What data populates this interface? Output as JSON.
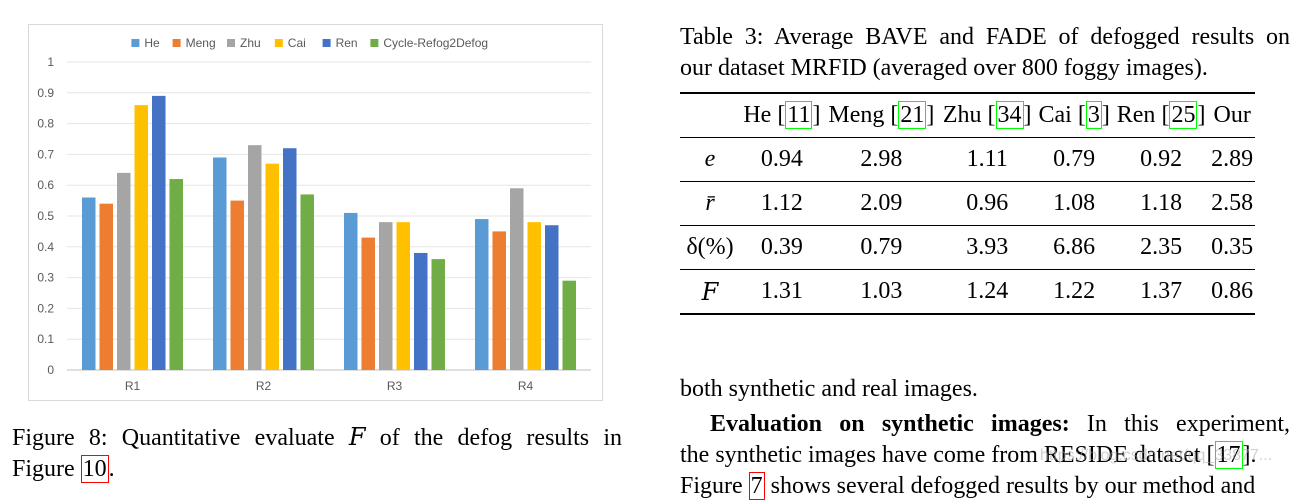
{
  "chart_data": {
    "type": "bar",
    "categories": [
      "R1",
      "R2",
      "R3",
      "R4"
    ],
    "series": [
      {
        "name": "He",
        "color": "#5b9bd5",
        "values": [
          0.56,
          0.69,
          0.51,
          0.49
        ]
      },
      {
        "name": "Meng",
        "color": "#ed7d31",
        "values": [
          0.54,
          0.55,
          0.43,
          0.45
        ]
      },
      {
        "name": "Zhu",
        "color": "#a5a5a5",
        "values": [
          0.64,
          0.73,
          0.48,
          0.59
        ]
      },
      {
        "name": "Cai",
        "color": "#ffc000",
        "values": [
          0.86,
          0.67,
          0.48,
          0.48
        ]
      },
      {
        "name": "Ren",
        "color": "#4472c4",
        "values": [
          0.89,
          0.72,
          0.38,
          0.47
        ]
      },
      {
        "name": "Cycle-Refog2Defog",
        "color": "#70ad47",
        "values": [
          0.62,
          0.57,
          0.36,
          0.29
        ]
      }
    ],
    "ylim": [
      0,
      1
    ],
    "yticks": [
      "0",
      "0.1",
      "0.2",
      "0.3",
      "0.4",
      "0.5",
      "0.6",
      "0.7",
      "0.8",
      "0.9",
      "1"
    ],
    "grid": true,
    "legend": "top",
    "title": "",
    "xlabel": "",
    "ylabel": ""
  },
  "figure_caption": {
    "prefix": "Figure 8:  Quantitative evaluate ",
    "symbol": "F",
    "middle": " of the defog results in",
    "line2_prefix": "Figure ",
    "ref": "10",
    "end": "."
  },
  "table": {
    "caption_line1": "Table 3: Average BAVE and FADE of defogged results on",
    "caption_line2": "our dataset MRFID (averaged over 800 foggy images).",
    "headers": [
      {
        "name": "He",
        "ref": "11"
      },
      {
        "name": "Meng",
        "ref": "21"
      },
      {
        "name": "Zhu",
        "ref": "34"
      },
      {
        "name": "Cai",
        "ref": "3"
      },
      {
        "name": "Ren",
        "ref": "25"
      },
      {
        "name": "Our",
        "ref": ""
      }
    ],
    "rows": [
      {
        "label": "e",
        "values": [
          "0.94",
          "2.98",
          "1.11",
          "0.79",
          "0.92",
          "2.89"
        ]
      },
      {
        "label": "r̄",
        "values": [
          "1.12",
          "2.09",
          "0.96",
          "1.08",
          "1.18",
          "2.58"
        ]
      },
      {
        "label": "δ(%)",
        "values": [
          "0.39",
          "0.79",
          "3.93",
          "6.86",
          "2.35",
          "0.35"
        ]
      },
      {
        "label": "F",
        "values": [
          "1.31",
          "1.03",
          "1.24",
          "1.22",
          "1.37",
          "0.86"
        ]
      }
    ]
  },
  "body": {
    "line1": "both synthetic and real images.",
    "heading": "Evaluation on synthetic images:",
    "para_rest": " In this experiment,",
    "line3_prefix": "the synthetic images have come from RESIDE dataset [",
    "line3_ref": "17",
    "line3_end": "].",
    "line4_prefix": "Figure ",
    "line4_ref": "7",
    "line4_rest": " shows several defogged results by our method and"
  },
  "watermark": "https://blog.csdn.net/qq_33877..."
}
